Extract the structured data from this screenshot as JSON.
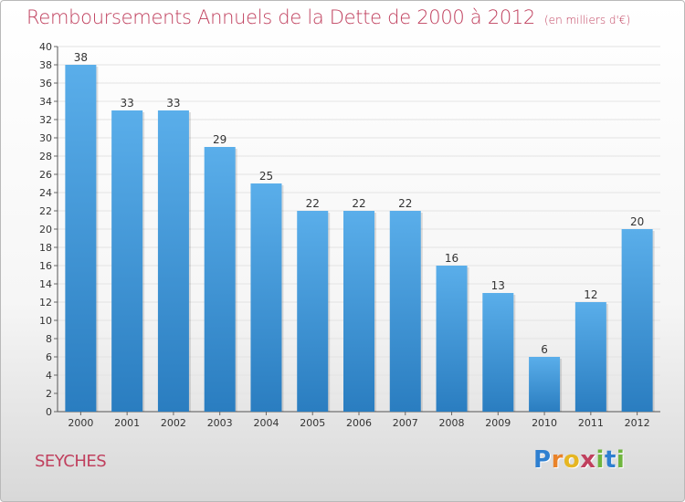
{
  "title": "Remboursements Annuels de la Dette de 2000 à 2012",
  "subtitle": "(en milliers d'€)",
  "commune": "SEYCHES",
  "logo": {
    "text": "Proxiti",
    "letters": [
      "P",
      "r",
      "o",
      "x",
      "i",
      "t",
      "i"
    ],
    "letter_colors": [
      "#2e7fd0",
      "#e9832a",
      "#e6b622",
      "#c0405e",
      "#6fb53e",
      "#2e7fd0",
      "#6fb53e"
    ]
  },
  "colors": {
    "title": "#c0405e",
    "bar_top": "#5aaeea",
    "bar_bottom": "#2a7dc0",
    "grid": "#e3e3e3"
  },
  "chart_data": {
    "type": "bar",
    "title": "Remboursements Annuels de la Dette de 2000 à 2012",
    "subtitle": "(en milliers d'€)",
    "categories": [
      "2000",
      "2001",
      "2002",
      "2003",
      "2004",
      "2005",
      "2006",
      "2007",
      "2008",
      "2009",
      "2010",
      "2011",
      "2012"
    ],
    "values": [
      38,
      33,
      33,
      29,
      25,
      22,
      22,
      22,
      16,
      13,
      6,
      12,
      20
    ],
    "ylim": [
      0,
      40
    ],
    "ytick_step": 2,
    "grid": true,
    "legend": "none"
  }
}
